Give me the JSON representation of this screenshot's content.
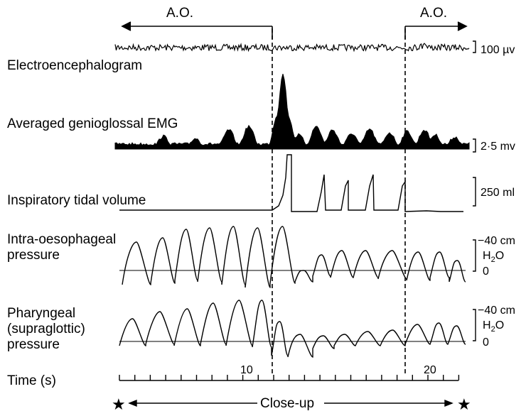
{
  "figure": {
    "apnea_label_left": "A.O.",
    "apnea_label_right": "A.O.",
    "traces": [
      {
        "label": "Electroencephalogram",
        "scale_label": "100 µv"
      },
      {
        "label": "Averaged genioglossal EMG",
        "scale_label": "2·5 mv"
      },
      {
        "label": "Inspiratory tidal volume",
        "scale_label": "250 ml"
      },
      {
        "label_line1": "Intra-oesophageal",
        "label_line2": "pressure",
        "scale_top": "−40 cm",
        "scale_unit": "H",
        "scale_sub": "2",
        "scale_unit_tail": "O",
        "scale_zero": "0"
      },
      {
        "label_line1": "Pharyngeal",
        "label_line2": "(supraglottic)",
        "label_line3": "pressure",
        "scale_top": "−40 cm",
        "scale_unit": "H",
        "scale_sub": "2",
        "scale_unit_tail": "O",
        "scale_zero": "0"
      }
    ],
    "time_axis": {
      "label": "Time (s)",
      "tick_10": "10",
      "tick_20": "20"
    },
    "bottom_label": "Close-up",
    "star_left": "★",
    "star_right": "★"
  }
}
